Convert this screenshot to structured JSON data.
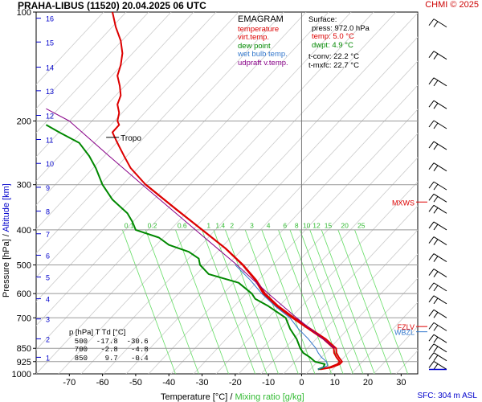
{
  "header": {
    "title": "PRAHA-LIBUS (11520)    20.04.2025 06 UTC",
    "copyright": "CHMI © 2025",
    "sfc_note": "SFC: 304 m ASL"
  },
  "axes": {
    "xlabel_temp": "Temperature [°C]",
    "xlabel_sep": "/",
    "xlabel_mix": "Mixing ratio [g/kg]",
    "ylabel_pres": "Pressure [hPa]",
    "ylabel_sep": "/",
    "ylabel_alt": "Altitude [km]"
  },
  "legend": {
    "title": "EMAGRAM",
    "items": [
      {
        "label": "temperature",
        "color": "#dd0000"
      },
      {
        "label": "virt.temp.",
        "color": "#dd0000"
      },
      {
        "label": "dew point",
        "color": "#008800"
      },
      {
        "label": "wet bulb temp.",
        "color": "#3377cc"
      },
      {
        "label": "udpraft v.temp.",
        "color": "#880088"
      }
    ]
  },
  "surface": {
    "title": "Surface:",
    "press": "press: 972.0 hPa",
    "temp": "temp: 5.0 °C",
    "dwpt": "dwpt: 4.9 °C",
    "tconv": "t-conv: 22.2 °C",
    "tmxfc": "t-mxfc: 22.7 °C"
  },
  "table": {
    "header": "p [hPa]   T   Td [°C]",
    "rows": [
      "  500  -17.8  -30.6",
      "  700   -2.8   -4.8",
      "  850    9.7   -0.4"
    ]
  },
  "chart_data": {
    "type": "line",
    "x_axis": {
      "label": "Temperature [°C]",
      "range": [
        -80,
        35
      ],
      "ticks": [
        -70,
        -60,
        -50,
        -40,
        -30,
        -20,
        -10,
        0,
        10,
        20,
        30
      ]
    },
    "y_axis": {
      "label": "Pressure [hPa]",
      "range": [
        1000,
        100
      ],
      "scale": "log",
      "ticks": [
        100,
        200,
        300,
        400,
        500,
        600,
        700,
        850,
        925,
        1000
      ]
    },
    "altitude_ticks_km": [
      "1",
      "2",
      "3",
      "4",
      "5",
      "6",
      "7",
      "8",
      "9",
      "10",
      "11",
      "12",
      "13",
      "14",
      "15",
      "16"
    ],
    "altitude_tick_pressures": [
      900,
      800,
      705,
      620,
      540,
      470,
      410,
      355,
      305,
      262,
      225,
      193,
      165,
      142,
      121,
      104
    ],
    "mixing_ratio_labels": [
      "0.1",
      "0.2",
      "0.6",
      "1",
      "1.4",
      "2",
      "3",
      "4",
      "6",
      "8",
      "10",
      "12",
      "15",
      "20",
      "25"
    ],
    "mixing_ratio_label_x": [
      -52,
      -45,
      -36,
      -28,
      -24.5,
      -21,
      -15,
      -10,
      -5,
      -1.5,
      1.5,
      4.5,
      8,
      13,
      18
    ],
    "series": [
      {
        "name": "temperature",
        "color": "#dd0000",
        "points": [
          [
            972,
            5.0
          ],
          [
            960,
            8.3
          ],
          [
            940,
            10.8
          ],
          [
            925,
            11.5
          ],
          [
            900,
            10.5
          ],
          [
            875,
            9.8
          ],
          [
            850,
            9.7
          ],
          [
            800,
            6.5
          ],
          [
            750,
            2.0
          ],
          [
            700,
            -2.8
          ],
          [
            650,
            -7.5
          ],
          [
            600,
            -11.5
          ],
          [
            550,
            -14.0
          ],
          [
            500,
            -17.8
          ],
          [
            450,
            -23.0
          ],
          [
            400,
            -30.0
          ],
          [
            350,
            -38.0
          ],
          [
            300,
            -47.0
          ],
          [
            270,
            -51.5
          ],
          [
            250,
            -53.5
          ],
          [
            235,
            -55.0
          ],
          [
            225,
            -56.0
          ],
          [
            215,
            -57.0
          ],
          [
            205,
            -55.0
          ],
          [
            200,
            -55.5
          ],
          [
            190,
            -55.0
          ],
          [
            180,
            -55.5
          ],
          [
            170,
            -54.5
          ],
          [
            160,
            -54.8
          ],
          [
            150,
            -55.5
          ],
          [
            140,
            -54.5
          ],
          [
            130,
            -54.0
          ],
          [
            120,
            -54.5
          ],
          [
            110,
            -56.0
          ],
          [
            100,
            -57.0
          ]
        ]
      },
      {
        "name": "virt.temp.",
        "color": "#dd0000",
        "points": [
          [
            972,
            5.6
          ],
          [
            960,
            9.0
          ],
          [
            940,
            11.5
          ],
          [
            925,
            12.2
          ],
          [
            900,
            11.2
          ],
          [
            875,
            10.5
          ],
          [
            850,
            10.4
          ],
          [
            800,
            7.2
          ],
          [
            750,
            2.6
          ],
          [
            700,
            -2.2
          ],
          [
            650,
            -7.0
          ],
          [
            600,
            -11.0
          ],
          [
            550,
            -13.7
          ],
          [
            500,
            -17.6
          ],
          [
            450,
            -22.9
          ],
          [
            400,
            -29.9
          ],
          [
            350,
            -37.9
          ],
          [
            300,
            -46.9
          ]
        ]
      },
      {
        "name": "dew point",
        "color": "#008800",
        "points": [
          [
            972,
            4.9
          ],
          [
            960,
            6.5
          ],
          [
            940,
            7.0
          ],
          [
            925,
            4.0
          ],
          [
            900,
            2.5
          ],
          [
            875,
            0.5
          ],
          [
            850,
            -0.4
          ],
          [
            800,
            -1.5
          ],
          [
            750,
            -3.5
          ],
          [
            700,
            -4.8
          ],
          [
            650,
            -10.0
          ],
          [
            620,
            -14.0
          ],
          [
            600,
            -15.0
          ],
          [
            560,
            -19.0
          ],
          [
            530,
            -28.0
          ],
          [
            500,
            -30.6
          ],
          [
            480,
            -31.0
          ],
          [
            460,
            -34.0
          ],
          [
            440,
            -40.0
          ],
          [
            420,
            -43.0
          ],
          [
            400,
            -50.0
          ],
          [
            380,
            -51.0
          ],
          [
            360,
            -52.5
          ],
          [
            330,
            -57.0
          ],
          [
            300,
            -60.0
          ],
          [
            270,
            -62.0
          ],
          [
            250,
            -64.0
          ],
          [
            230,
            -67.0
          ],
          [
            215,
            -73.0
          ],
          [
            205,
            -77.0
          ]
        ]
      },
      {
        "name": "wet bulb temp.",
        "color": "#3377cc",
        "points": [
          [
            972,
            4.9
          ],
          [
            950,
            7.8
          ],
          [
            925,
            7.5
          ],
          [
            900,
            6.0
          ],
          [
            875,
            5.0
          ],
          [
            850,
            4.3
          ],
          [
            800,
            2.0
          ],
          [
            750,
            -1.0
          ],
          [
            700,
            -3.5
          ],
          [
            650,
            -8.0
          ],
          [
            600,
            -12.0
          ],
          [
            550,
            -15.5
          ],
          [
            500,
            -20.0
          ]
        ]
      },
      {
        "name": "udpraft v.temp.",
        "color": "#880088",
        "points": [
          [
            850,
            10.0
          ],
          [
            700,
            -1.5
          ],
          [
            600,
            -10.0
          ],
          [
            500,
            -19.5
          ],
          [
            400,
            -32.0
          ],
          [
            300,
            -48.0
          ],
          [
            250,
            -58.0
          ],
          [
            200,
            -70.0
          ],
          [
            185,
            -77.0
          ]
        ]
      }
    ],
    "annotations": [
      {
        "text": "Tropo",
        "pressure": 222,
        "temp": -56
      },
      {
        "text": "MXWS",
        "pressure": 335,
        "side": "right"
      },
      {
        "text": "FZLV",
        "pressure": 740,
        "side": "right"
      },
      {
        "text": "WBZL",
        "pressure": 765,
        "side": "right"
      }
    ],
    "wind_barbs": [
      {
        "pressure": 110
      },
      {
        "pressure": 135
      },
      {
        "pressure": 160
      },
      {
        "pressure": 185
      },
      {
        "pressure": 210
      },
      {
        "pressure": 240
      },
      {
        "pressure": 275
      },
      {
        "pressure": 310
      },
      {
        "pressure": 335
      },
      {
        "pressure": 360
      },
      {
        "pressure": 400
      },
      {
        "pressure": 440
      },
      {
        "pressure": 490
      },
      {
        "pressure": 540
      },
      {
        "pressure": 590
      },
      {
        "pressure": 640
      },
      {
        "pressure": 700
      },
      {
        "pressure": 760
      },
      {
        "pressure": 820
      },
      {
        "pressure": 870
      },
      {
        "pressure": 920
      },
      {
        "pressure": 972
      }
    ]
  }
}
